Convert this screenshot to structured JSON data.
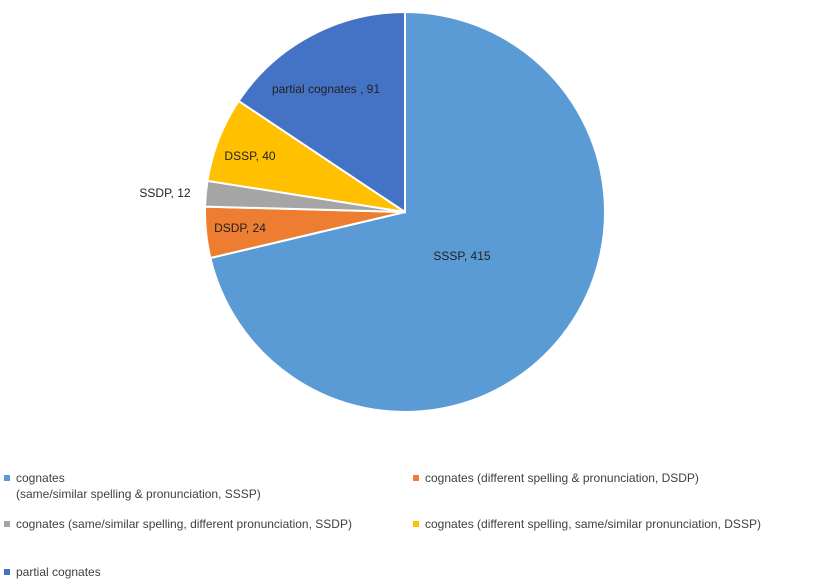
{
  "chart_data": {
    "type": "pie",
    "title": "",
    "slices": [
      {
        "label": "SSSP",
        "value": 415,
        "color": "#5B9BD5",
        "data_label": "SSSP, 415"
      },
      {
        "label": "DSDP",
        "value": 24,
        "color": "#ED7D31",
        "data_label": "DSDP, 24"
      },
      {
        "label": "SSDP",
        "value": 12,
        "color": "#A5A5A5",
        "data_label": "SSDP, 12"
      },
      {
        "label": "DSSP",
        "value": 40,
        "color": "#FFC000",
        "data_label": "DSSP, 40"
      },
      {
        "label": "partial cognates",
        "value": 91,
        "color": "#4472C4",
        "data_label": "partial cognates , 91"
      }
    ],
    "legend_position": "bottom",
    "legend": [
      {
        "text": "cognates\n(same/similar spelling & pronunciation, SSSP)",
        "color": "#5B9BD5"
      },
      {
        "text": "cognates (different spelling & pronunciation, DSDP)",
        "color": "#ED7D31"
      },
      {
        "text": "cognates (same/similar spelling, different pronunciation, SSDP)",
        "color": "#A5A5A5"
      },
      {
        "text": "cognates (different spelling, same/similar pronunciation, DSSP)",
        "color": "#FFC000"
      },
      {
        "text": "partial cognates",
        "color": "#4472C4"
      }
    ]
  }
}
